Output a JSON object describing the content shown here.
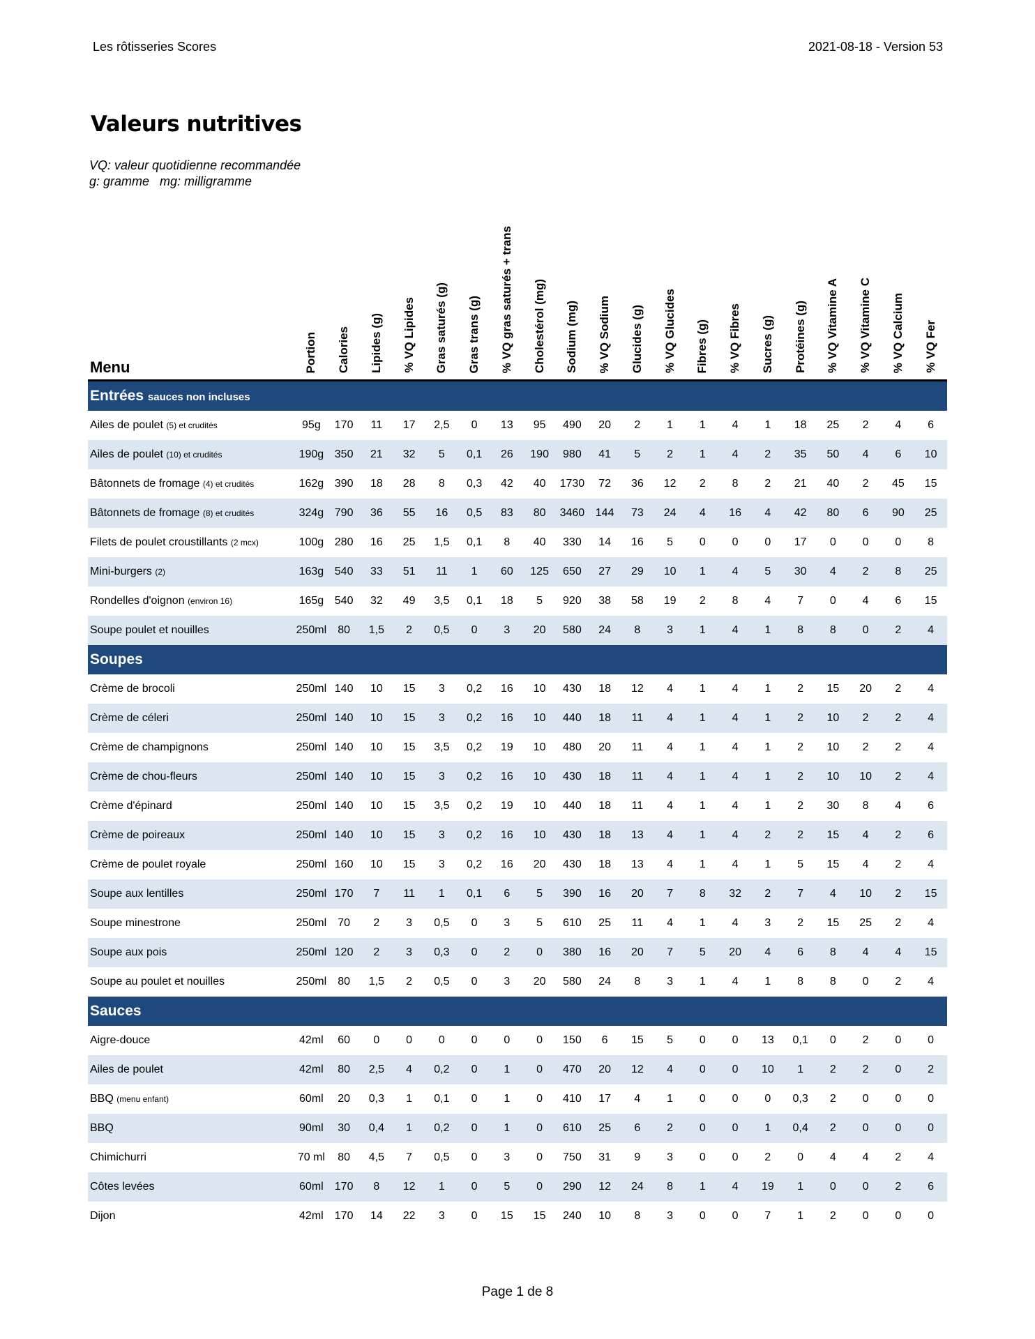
{
  "header": {
    "left": "Les rôtisseries Scores",
    "right": "2021-08-18 - Version 53"
  },
  "title": "Valeurs nutritives",
  "notes": [
    "VQ: valeur quotidienne recommandée",
    "g: gramme   mg: milligramme"
  ],
  "table": {
    "menu_header": "Menu",
    "columns": [
      "Portion",
      "Calories",
      "Lipides (g)",
      "% VQ Lipides",
      "Gras saturés (g)",
      "Gras trans (g)",
      "% VQ gras saturés + trans",
      "Cholestérol (mg)",
      "Sodium (mg)",
      "% VQ Sodium",
      "Glucides (g)",
      "% VQ Glucides",
      "Fibres (g)",
      "% VQ Fibres",
      "Sucres (g)",
      "Protéines (g)",
      "% VQ Vitamine A",
      "% VQ Vitamine C",
      "% VQ Calcium",
      "% VQ Fer"
    ],
    "sections": [
      {
        "title": "Entrées",
        "subtitle": "sauces non incluses",
        "rows": [
          {
            "name": "Ailes de poulet",
            "note": "(5) et crudités",
            "cells": [
              "95g",
              "170",
              "11",
              "17",
              "2,5",
              "0",
              "13",
              "95",
              "490",
              "20",
              "2",
              "1",
              "1",
              "4",
              "1",
              "18",
              "25",
              "2",
              "4",
              "6"
            ]
          },
          {
            "name": "Ailes de poulet",
            "note": "(10) et crudités",
            "cells": [
              "190g",
              "350",
              "21",
              "32",
              "5",
              "0,1",
              "26",
              "190",
              "980",
              "41",
              "5",
              "2",
              "1",
              "4",
              "2",
              "35",
              "50",
              "4",
              "6",
              "10"
            ]
          },
          {
            "name": "Bâtonnets de fromage",
            "note": "(4) et crudités",
            "cells": [
              "162g",
              "390",
              "18",
              "28",
              "8",
              "0,3",
              "42",
              "40",
              "1730",
              "72",
              "36",
              "12",
              "2",
              "8",
              "2",
              "21",
              "40",
              "2",
              "45",
              "15"
            ]
          },
          {
            "name": "Bâtonnets de fromage",
            "note": "(8) et crudités",
            "cells": [
              "324g",
              "790",
              "36",
              "55",
              "16",
              "0,5",
              "83",
              "80",
              "3460",
              "144",
              "73",
              "24",
              "4",
              "16",
              "4",
              "42",
              "80",
              "6",
              "90",
              "25"
            ]
          },
          {
            "name": "Filets de poulet croustillants",
            "note": "(2 mcx)",
            "cells": [
              "100g",
              "280",
              "16",
              "25",
              "1,5",
              "0,1",
              "8",
              "40",
              "330",
              "14",
              "16",
              "5",
              "0",
              "0",
              "0",
              "17",
              "0",
              "0",
              "0",
              "8"
            ]
          },
          {
            "name": "Mini-burgers",
            "note": "(2)",
            "cells": [
              "163g",
              "540",
              "33",
              "51",
              "11",
              "1",
              "60",
              "125",
              "650",
              "27",
              "29",
              "10",
              "1",
              "4",
              "5",
              "30",
              "4",
              "2",
              "8",
              "25"
            ]
          },
          {
            "name": "Rondelles d'oignon",
            "note": "(environ 16)",
            "cells": [
              "165g",
              "540",
              "32",
              "49",
              "3,5",
              "0,1",
              "18",
              "5",
              "920",
              "38",
              "58",
              "19",
              "2",
              "8",
              "4",
              "7",
              "0",
              "4",
              "6",
              "15"
            ]
          },
          {
            "name": "Soupe poulet et nouilles",
            "cells": [
              "250ml",
              "80",
              "1,5",
              "2",
              "0,5",
              "0",
              "3",
              "20",
              "580",
              "24",
              "8",
              "3",
              "1",
              "4",
              "1",
              "8",
              "8",
              "0",
              "2",
              "4"
            ]
          }
        ]
      },
      {
        "title": "Soupes",
        "rows": [
          {
            "name": "Crème de brocoli",
            "cells": [
              "250ml",
              "140",
              "10",
              "15",
              "3",
              "0,2",
              "16",
              "10",
              "430",
              "18",
              "12",
              "4",
              "1",
              "4",
              "1",
              "2",
              "15",
              "20",
              "2",
              "4"
            ]
          },
          {
            "name": "Crème de céleri",
            "cells": [
              "250ml",
              "140",
              "10",
              "15",
              "3",
              "0,2",
              "16",
              "10",
              "440",
              "18",
              "11",
              "4",
              "1",
              "4",
              "1",
              "2",
              "10",
              "2",
              "2",
              "4"
            ]
          },
          {
            "name": "Crème de champignons",
            "cells": [
              "250ml",
              "140",
              "10",
              "15",
              "3,5",
              "0,2",
              "19",
              "10",
              "480",
              "20",
              "11",
              "4",
              "1",
              "4",
              "1",
              "2",
              "10",
              "2",
              "2",
              "4"
            ]
          },
          {
            "name": "Crème de chou-fleurs",
            "cells": [
              "250ml",
              "140",
              "10",
              "15",
              "3",
              "0,2",
              "16",
              "10",
              "430",
              "18",
              "11",
              "4",
              "1",
              "4",
              "1",
              "2",
              "10",
              "10",
              "2",
              "4"
            ]
          },
          {
            "name": "Crème d'épinard",
            "cells": [
              "250ml",
              "140",
              "10",
              "15",
              "3,5",
              "0,2",
              "19",
              "10",
              "440",
              "18",
              "11",
              "4",
              "1",
              "4",
              "1",
              "2",
              "30",
              "8",
              "4",
              "6"
            ]
          },
          {
            "name": "Crème de poireaux",
            "cells": [
              "250ml",
              "140",
              "10",
              "15",
              "3",
              "0,2",
              "16",
              "10",
              "430",
              "18",
              "13",
              "4",
              "1",
              "4",
              "2",
              "2",
              "15",
              "4",
              "2",
              "6"
            ]
          },
          {
            "name": "Crème de poulet royale",
            "cells": [
              "250ml",
              "160",
              "10",
              "15",
              "3",
              "0,2",
              "16",
              "20",
              "430",
              "18",
              "13",
              "4",
              "1",
              "4",
              "1",
              "5",
              "15",
              "4",
              "2",
              "4"
            ]
          },
          {
            "name": "Soupe aux lentilles",
            "cells": [
              "250ml",
              "170",
              "7",
              "11",
              "1",
              "0,1",
              "6",
              "5",
              "390",
              "16",
              "20",
              "7",
              "8",
              "32",
              "2",
              "7",
              "4",
              "10",
              "2",
              "15"
            ]
          },
          {
            "name": "Soupe minestrone",
            "cells": [
              "250ml",
              "70",
              "2",
              "3",
              "0,5",
              "0",
              "3",
              "5",
              "610",
              "25",
              "11",
              "4",
              "1",
              "4",
              "3",
              "2",
              "15",
              "25",
              "2",
              "4"
            ]
          },
          {
            "name": "Soupe aux pois",
            "cells": [
              "250ml",
              "120",
              "2",
              "3",
              "0,3",
              "0",
              "2",
              "0",
              "380",
              "16",
              "20",
              "7",
              "5",
              "20",
              "4",
              "6",
              "8",
              "4",
              "4",
              "15"
            ]
          },
          {
            "name": "Soupe au poulet et nouilles",
            "cells": [
              "250ml",
              "80",
              "1,5",
              "2",
              "0,5",
              "0",
              "3",
              "20",
              "580",
              "24",
              "8",
              "3",
              "1",
              "4",
              "1",
              "8",
              "8",
              "0",
              "2",
              "4"
            ]
          }
        ]
      },
      {
        "title": "Sauces",
        "rows": [
          {
            "name": "Aigre-douce",
            "cells": [
              "42ml",
              "60",
              "0",
              "0",
              "0",
              "0",
              "0",
              "0",
              "150",
              "6",
              "15",
              "5",
              "0",
              "0",
              "13",
              "0,1",
              "0",
              "2",
              "0",
              "0"
            ]
          },
          {
            "name": "Ailes de poulet",
            "cells": [
              "42ml",
              "80",
              "2,5",
              "4",
              "0,2",
              "0",
              "1",
              "0",
              "470",
              "20",
              "12",
              "4",
              "0",
              "0",
              "10",
              "1",
              "2",
              "2",
              "0",
              "2"
            ]
          },
          {
            "name": "BBQ",
            "note": "(menu enfant)",
            "cells": [
              "60ml",
              "20",
              "0,3",
              "1",
              "0,1",
              "0",
              "1",
              "0",
              "410",
              "17",
              "4",
              "1",
              "0",
              "0",
              "0",
              "0,3",
              "2",
              "0",
              "0",
              "0"
            ]
          },
          {
            "name": "BBQ",
            "cells": [
              "90ml",
              "30",
              "0,4",
              "1",
              "0,2",
              "0",
              "1",
              "0",
              "610",
              "25",
              "6",
              "2",
              "0",
              "0",
              "1",
              "0,4",
              "2",
              "0",
              "0",
              "0"
            ]
          },
          {
            "name": "Chimichurri",
            "cells": [
              "70 ml",
              "80",
              "4,5",
              "7",
              "0,5",
              "0",
              "3",
              "0",
              "750",
              "31",
              "9",
              "3",
              "0",
              "0",
              "2",
              "0",
              "4",
              "4",
              "2",
              "4"
            ]
          },
          {
            "name": "Côtes levées",
            "cells": [
              "60ml",
              "170",
              "8",
              "12",
              "1",
              "0",
              "5",
              "0",
              "290",
              "12",
              "24",
              "8",
              "1",
              "4",
              "19",
              "1",
              "0",
              "0",
              "2",
              "6"
            ]
          },
          {
            "name": "Dijon",
            "cells": [
              "42ml",
              "170",
              "14",
              "22",
              "3",
              "0",
              "15",
              "15",
              "240",
              "10",
              "8",
              "3",
              "0",
              "0",
              "7",
              "1",
              "2",
              "0",
              "0",
              "0"
            ]
          }
        ]
      }
    ]
  },
  "footer": "Page 1 de 8"
}
